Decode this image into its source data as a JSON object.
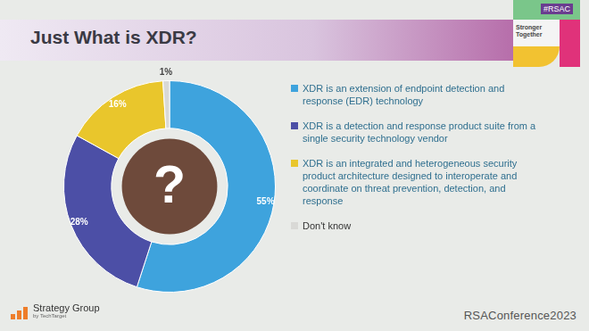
{
  "chart_data": {
    "type": "doughnut",
    "title": "Just What is XDR?",
    "categories": [
      "XDR is an extension of endpoint detection and response (EDR) technology",
      "XDR is a detection and response product suite from a single security technology vendor",
      "XDR is an integrated and heterogeneous security product architecture designed to interoperate and coordinate on threat prevention, detection, and response",
      "Don't know"
    ],
    "values": [
      55,
      28,
      16,
      1
    ],
    "value_labels": [
      "55%",
      "28%",
      "16%",
      "1%"
    ],
    "colors": [
      "#3ea3dd",
      "#4c4fa6",
      "#e9c62c",
      "#d9d9d6"
    ],
    "data_labels": true,
    "legend": "right",
    "annotations": [
      "?"
    ]
  },
  "slide": {
    "tag": "#RSAC",
    "badge": "Stronger Together",
    "logo": "Strategy Group",
    "logo_sub": "by TechTarget",
    "footer": "RSAConference2023"
  }
}
